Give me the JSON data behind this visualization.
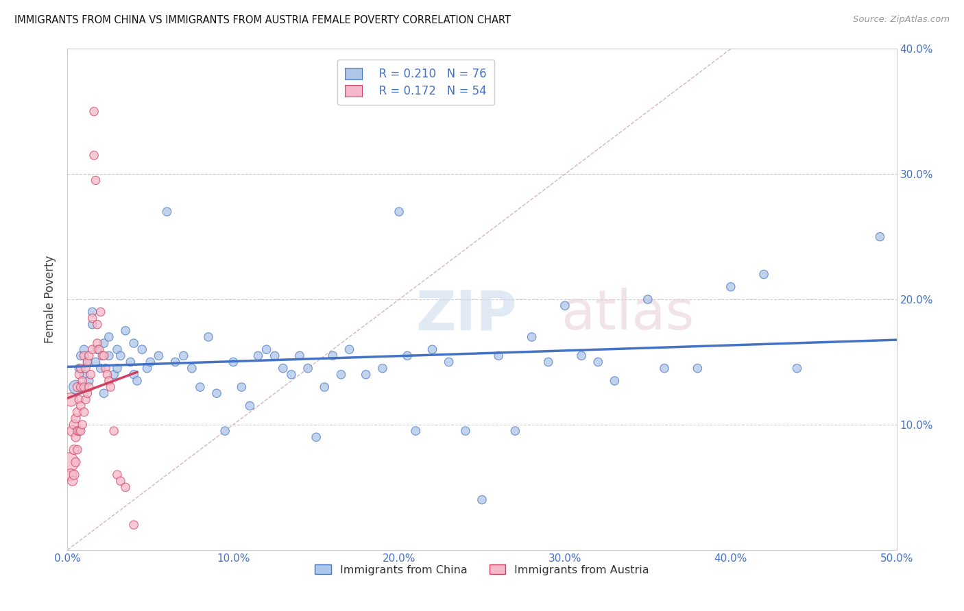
{
  "title": "IMMIGRANTS FROM CHINA VS IMMIGRANTS FROM AUSTRIA FEMALE POVERTY CORRELATION CHART",
  "source": "Source: ZipAtlas.com",
  "ylabel": "Female Poverty",
  "xlim": [
    0,
    0.5
  ],
  "ylim": [
    0,
    0.4
  ],
  "xticks": [
    0.0,
    0.1,
    0.2,
    0.3,
    0.4,
    0.5
  ],
  "xtick_labels": [
    "0.0%",
    "10.0%",
    "20.0%",
    "30.0%",
    "40.0%",
    "50.0%"
  ],
  "yticks": [
    0.0,
    0.1,
    0.2,
    0.3,
    0.4
  ],
  "ytick_labels_right": [
    "",
    "10.0%",
    "20.0%",
    "30.0%",
    "40.0%"
  ],
  "legend_R1": "R = 0.210",
  "legend_N1": "N = 76",
  "legend_R2": "R = 0.172",
  "legend_N2": "N = 54",
  "color_china_fill": "#aec6e8",
  "color_china_edge": "#4472c4",
  "color_austria_fill": "#f5b8c8",
  "color_austria_edge": "#d04060",
  "color_line_china": "#4472c4",
  "color_line_austria": "#d04060",
  "color_diag": "#d0a0a8",
  "color_text_blue": "#4472c4",
  "china_x": [
    0.005,
    0.007,
    0.008,
    0.01,
    0.01,
    0.012,
    0.013,
    0.015,
    0.015,
    0.017,
    0.018,
    0.02,
    0.022,
    0.022,
    0.025,
    0.025,
    0.028,
    0.03,
    0.03,
    0.032,
    0.035,
    0.038,
    0.04,
    0.04,
    0.042,
    0.045,
    0.048,
    0.05,
    0.055,
    0.06,
    0.065,
    0.07,
    0.075,
    0.08,
    0.085,
    0.09,
    0.095,
    0.1,
    0.105,
    0.11,
    0.115,
    0.12,
    0.125,
    0.13,
    0.135,
    0.14,
    0.145,
    0.15,
    0.155,
    0.16,
    0.165,
    0.17,
    0.18,
    0.19,
    0.2,
    0.205,
    0.21,
    0.22,
    0.23,
    0.24,
    0.25,
    0.26,
    0.27,
    0.28,
    0.29,
    0.3,
    0.31,
    0.32,
    0.33,
    0.35,
    0.36,
    0.38,
    0.4,
    0.42,
    0.44,
    0.49
  ],
  "china_y": [
    0.13,
    0.145,
    0.155,
    0.14,
    0.16,
    0.15,
    0.135,
    0.18,
    0.19,
    0.15,
    0.16,
    0.145,
    0.165,
    0.125,
    0.155,
    0.17,
    0.14,
    0.145,
    0.16,
    0.155,
    0.175,
    0.15,
    0.14,
    0.165,
    0.135,
    0.16,
    0.145,
    0.15,
    0.155,
    0.27,
    0.15,
    0.155,
    0.145,
    0.13,
    0.17,
    0.125,
    0.095,
    0.15,
    0.13,
    0.115,
    0.155,
    0.16,
    0.155,
    0.145,
    0.14,
    0.155,
    0.145,
    0.09,
    0.13,
    0.155,
    0.14,
    0.16,
    0.14,
    0.145,
    0.27,
    0.155,
    0.095,
    0.16,
    0.15,
    0.095,
    0.04,
    0.155,
    0.095,
    0.17,
    0.15,
    0.195,
    0.155,
    0.15,
    0.135,
    0.2,
    0.145,
    0.145,
    0.21,
    0.22,
    0.145,
    0.25
  ],
  "china_size": [
    200,
    80,
    80,
    80,
    80,
    80,
    80,
    80,
    80,
    80,
    80,
    80,
    80,
    80,
    80,
    80,
    80,
    80,
    80,
    80,
    80,
    80,
    80,
    80,
    80,
    80,
    80,
    80,
    80,
    80,
    80,
    80,
    80,
    80,
    80,
    80,
    80,
    80,
    80,
    80,
    80,
    80,
    80,
    80,
    80,
    80,
    80,
    80,
    80,
    80,
    80,
    80,
    80,
    80,
    80,
    80,
    80,
    80,
    80,
    80,
    80,
    80,
    80,
    80,
    80,
    80,
    80,
    80,
    80,
    80,
    80,
    80,
    80,
    80,
    80,
    80
  ],
  "austria_x": [
    0.001,
    0.002,
    0.002,
    0.003,
    0.003,
    0.004,
    0.004,
    0.004,
    0.005,
    0.005,
    0.005,
    0.006,
    0.006,
    0.006,
    0.006,
    0.007,
    0.007,
    0.007,
    0.008,
    0.008,
    0.008,
    0.008,
    0.009,
    0.009,
    0.01,
    0.01,
    0.01,
    0.011,
    0.011,
    0.012,
    0.012,
    0.013,
    0.013,
    0.014,
    0.015,
    0.015,
    0.016,
    0.016,
    0.017,
    0.018,
    0.018,
    0.019,
    0.02,
    0.021,
    0.022,
    0.023,
    0.024,
    0.025,
    0.026,
    0.028,
    0.03,
    0.032,
    0.035,
    0.04
  ],
  "austria_y": [
    0.07,
    0.12,
    0.06,
    0.095,
    0.055,
    0.1,
    0.08,
    0.06,
    0.105,
    0.09,
    0.07,
    0.13,
    0.11,
    0.095,
    0.08,
    0.14,
    0.12,
    0.095,
    0.145,
    0.13,
    0.115,
    0.095,
    0.135,
    0.1,
    0.155,
    0.13,
    0.11,
    0.145,
    0.12,
    0.15,
    0.125,
    0.155,
    0.13,
    0.14,
    0.185,
    0.16,
    0.35,
    0.315,
    0.295,
    0.18,
    0.165,
    0.16,
    0.19,
    0.155,
    0.155,
    0.145,
    0.14,
    0.135,
    0.13,
    0.095,
    0.06,
    0.055,
    0.05,
    0.02
  ],
  "austria_size": [
    400,
    200,
    150,
    130,
    100,
    100,
    100,
    100,
    90,
    90,
    90,
    90,
    90,
    80,
    80,
    80,
    80,
    80,
    80,
    80,
    80,
    80,
    80,
    80,
    80,
    80,
    80,
    80,
    80,
    80,
    80,
    80,
    80,
    80,
    80,
    80,
    80,
    80,
    80,
    80,
    80,
    80,
    80,
    80,
    80,
    80,
    80,
    80,
    80,
    80,
    80,
    80,
    80,
    80
  ]
}
